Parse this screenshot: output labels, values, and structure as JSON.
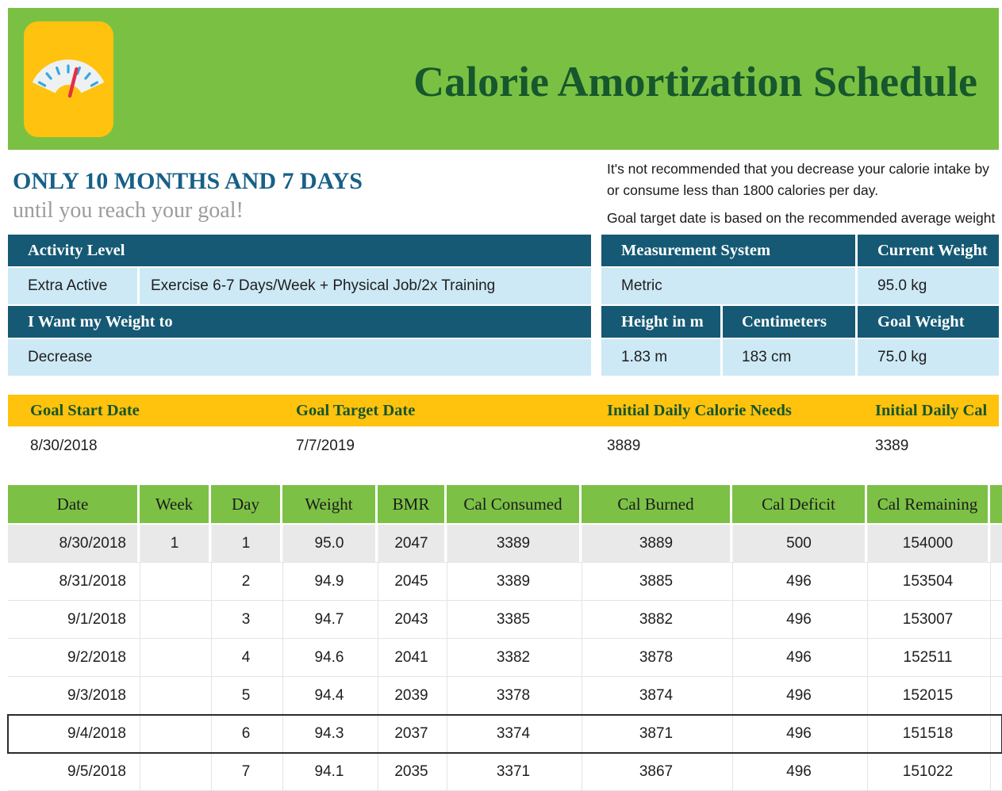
{
  "header": {
    "title": "Calorie Amortization Schedule"
  },
  "summary": {
    "headline": "ONLY 10 MONTHS AND 7 DAYS",
    "subheadline": "until you reach your goal!",
    "note1_line1": "It's not recommended that you decrease your calorie intake by",
    "note1_line2": "or consume less than 1800 calories per day.",
    "note2": "Goal target date is based on the recommended average weight"
  },
  "settings": {
    "activity_level_label": "Activity Level",
    "activity_level_value": "Extra Active",
    "activity_level_desc": "Exercise 6-7 Days/Week + Physical Job/2x Training",
    "weight_direction_label": "I Want my Weight to",
    "weight_direction_value": "Decrease",
    "measurement_system_label": "Measurement System",
    "measurement_system_value": "Metric",
    "current_weight_label": "Current Weight",
    "current_weight_value": "95.0 kg",
    "height_m_label": "Height in m",
    "height_m_value": "1.83 m",
    "centimeters_label": "Centimeters",
    "centimeters_value": "183 cm",
    "goal_weight_label": "Goal Weight",
    "goal_weight_value": "75.0 kg"
  },
  "goal": {
    "columns": [
      {
        "label": "Goal Start Date",
        "value": "8/30/2018"
      },
      {
        "label": "Goal Target Date",
        "value": "7/7/2019"
      },
      {
        "label": "Initial Daily Calorie Needs",
        "value": "3889"
      },
      {
        "label": "Initial Daily Cal",
        "value": "3389"
      }
    ]
  },
  "schedule": {
    "columns": [
      "Date",
      "Week",
      "Day",
      "Weight",
      "BMR",
      "Cal Consumed",
      "Cal Burned",
      "Cal Deficit",
      "Cal Remaining"
    ],
    "rows": [
      {
        "date": "8/30/2018",
        "week": "1",
        "day": "1",
        "weight": "95.0",
        "bmr": "2047",
        "cal_consumed": "3389",
        "cal_burned": "3889",
        "cal_deficit": "500",
        "cal_remaining": "154000",
        "shaded": true,
        "selected": false
      },
      {
        "date": "8/31/2018",
        "week": "",
        "day": "2",
        "weight": "94.9",
        "bmr": "2045",
        "cal_consumed": "3389",
        "cal_burned": "3885",
        "cal_deficit": "496",
        "cal_remaining": "153504",
        "shaded": false,
        "selected": false
      },
      {
        "date": "9/1/2018",
        "week": "",
        "day": "3",
        "weight": "94.7",
        "bmr": "2043",
        "cal_consumed": "3385",
        "cal_burned": "3882",
        "cal_deficit": "496",
        "cal_remaining": "153007",
        "shaded": false,
        "selected": false
      },
      {
        "date": "9/2/2018",
        "week": "",
        "day": "4",
        "weight": "94.6",
        "bmr": "2041",
        "cal_consumed": "3382",
        "cal_burned": "3878",
        "cal_deficit": "496",
        "cal_remaining": "152511",
        "shaded": false,
        "selected": false
      },
      {
        "date": "9/3/2018",
        "week": "",
        "day": "5",
        "weight": "94.4",
        "bmr": "2039",
        "cal_consumed": "3378",
        "cal_burned": "3874",
        "cal_deficit": "496",
        "cal_remaining": "152015",
        "shaded": false,
        "selected": false
      },
      {
        "date": "9/4/2018",
        "week": "",
        "day": "6",
        "weight": "94.3",
        "bmr": "2037",
        "cal_consumed": "3374",
        "cal_burned": "3871",
        "cal_deficit": "496",
        "cal_remaining": "151518",
        "shaded": false,
        "selected": true
      },
      {
        "date": "9/5/2018",
        "week": "",
        "day": "7",
        "weight": "94.1",
        "bmr": "2035",
        "cal_consumed": "3371",
        "cal_burned": "3867",
        "cal_deficit": "496",
        "cal_remaining": "151022",
        "shaded": false,
        "selected": false
      }
    ]
  },
  "colors": {
    "banner_green": "#7ac143",
    "table_header_green": "#7cc146",
    "teal_header": "#155974",
    "light_blue": "#cde9f6",
    "yellow": "#ffc20d",
    "title_dark_green": "#16572d",
    "headline_teal": "#176087",
    "shaded_row_gray": "#e9e9e9",
    "selection_border": "#2b2b2b",
    "icon_yellow": "#ffc20e",
    "icon_tick_blue": "#35a8e0",
    "icon_needle_red": "#e62e46"
  }
}
